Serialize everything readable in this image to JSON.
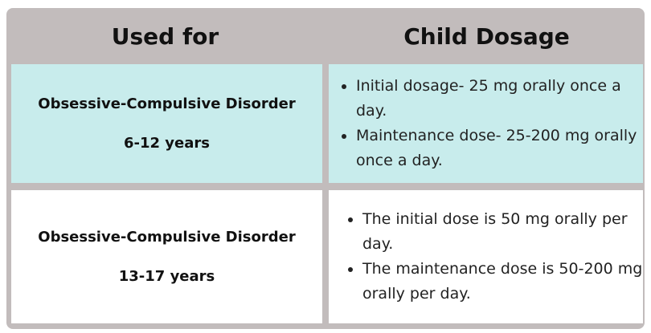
{
  "table": {
    "header": [
      "Used for",
      "Child Dosage"
    ],
    "rows": [
      {
        "condition": "Obsessive-Compulsive Disorder",
        "age": "6-12 years",
        "dosage": [
          "Initial dosage- 25 mg orally once a day.",
          "Maintenance dose- 25-200 mg orally once a day."
        ]
      },
      {
        "condition": "Obsessive-Compulsive Disorder",
        "age": "13-17 years",
        "dosage": [
          "The initial dose is 50 mg orally per day.",
          "The maintenance dose is 50-200 mg orally per day."
        ]
      }
    ]
  }
}
